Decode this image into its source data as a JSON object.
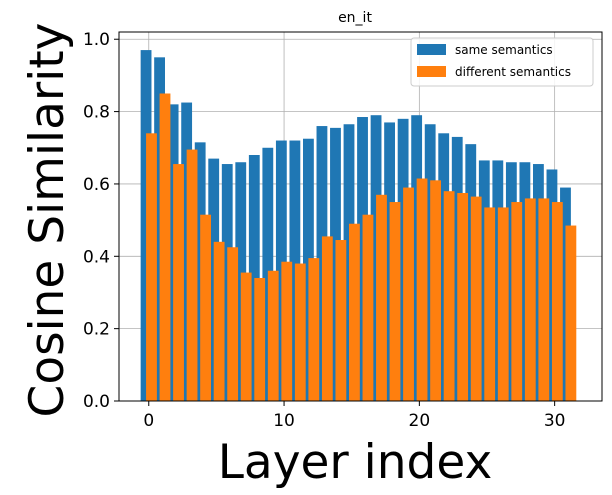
{
  "chart_data": {
    "type": "bar",
    "title": "en_it",
    "xlabel": "Layer index",
    "ylabel": "Cosine Similarity",
    "xlim": [
      -2.2,
      33.5
    ],
    "ylim": [
      0.0,
      1.02
    ],
    "xticks": [
      0,
      10,
      20,
      30
    ],
    "yticks": [
      0.0,
      0.2,
      0.4,
      0.6,
      0.8,
      1.0
    ],
    "xtick_labels": [
      "0",
      "10",
      "20",
      "30"
    ],
    "ytick_labels": [
      "0.0",
      "0.2",
      "0.4",
      "0.6",
      "0.8",
      "1.0"
    ],
    "grid": true,
    "legend_position": "top-right",
    "x": [
      0,
      1,
      2,
      3,
      4,
      5,
      6,
      7,
      8,
      9,
      10,
      11,
      12,
      13,
      14,
      15,
      16,
      17,
      18,
      19,
      20,
      21,
      22,
      23,
      24,
      25,
      26,
      27,
      28,
      29,
      30,
      31
    ],
    "series": [
      {
        "name": "same semantics",
        "color": "#1f77b4",
        "offset": -0.2,
        "values": [
          0.97,
          0.95,
          0.82,
          0.825,
          0.715,
          0.67,
          0.655,
          0.66,
          0.68,
          0.7,
          0.72,
          0.72,
          0.725,
          0.76,
          0.755,
          0.765,
          0.785,
          0.79,
          0.77,
          0.78,
          0.79,
          0.765,
          0.74,
          0.73,
          0.71,
          0.665,
          0.665,
          0.66,
          0.66,
          0.655,
          0.64,
          0.59
        ]
      },
      {
        "name": "different semantics",
        "color": "#ff7f0e",
        "offset": 0.2,
        "values": [
          0.74,
          0.85,
          0.655,
          0.695,
          0.515,
          0.44,
          0.425,
          0.355,
          0.34,
          0.36,
          0.385,
          0.38,
          0.395,
          0.455,
          0.445,
          0.49,
          0.515,
          0.57,
          0.55,
          0.59,
          0.615,
          0.61,
          0.58,
          0.575,
          0.565,
          0.535,
          0.535,
          0.55,
          0.56,
          0.56,
          0.55,
          0.485
        ]
      }
    ]
  }
}
